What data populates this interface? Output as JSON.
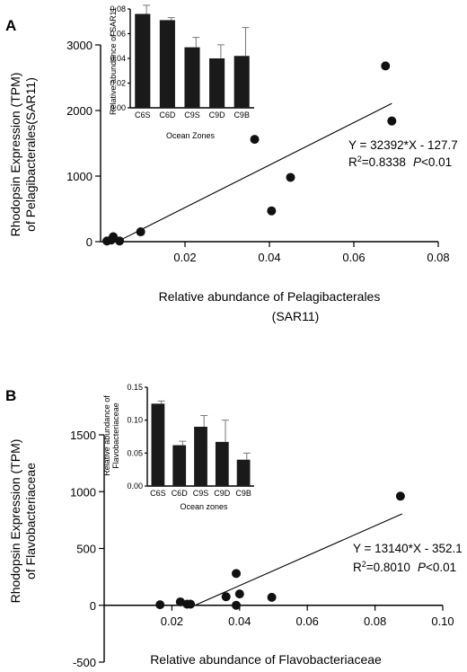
{
  "chart_data": [
    {
      "type": "scatter",
      "panel": "A",
      "ylabel_lines": [
        "Rhodopsin Expression (TPM)",
        "of Pelagibacterales(SAR11)"
      ],
      "xlabel_lines": [
        "Relative abundance of Pelagibacterales",
        "(SAR11)"
      ],
      "xlim": [
        0,
        0.08
      ],
      "ylim": [
        0,
        3000
      ],
      "xticks": [
        0.02,
        0.04,
        0.06,
        0.08
      ],
      "xtick_labels": [
        "0.02",
        "0.04",
        "0.06",
        "0.08"
      ],
      "yticks": [
        0,
        1000,
        2000,
        3000
      ],
      "ytick_labels": [
        "0",
        "1000",
        "2000",
        "3000"
      ],
      "points": [
        {
          "x": 0.0015,
          "y": 10
        },
        {
          "x": 0.0025,
          "y": 25
        },
        {
          "x": 0.003,
          "y": 75
        },
        {
          "x": 0.0045,
          "y": 10
        },
        {
          "x": 0.0095,
          "y": 150
        },
        {
          "x": 0.0365,
          "y": 1560
        },
        {
          "x": 0.0405,
          "y": 470
        },
        {
          "x": 0.045,
          "y": 980
        },
        {
          "x": 0.0675,
          "y": 2680
        },
        {
          "x": 0.069,
          "y": 1840
        }
      ],
      "fit": {
        "slope": 32392,
        "intercept": -127.7,
        "x_range": [
          0.0045,
          0.069
        ]
      },
      "equation": "Y = 32392*X - 127.7",
      "r2_prefix": "R",
      "r2_sup": "2",
      "r2_value": "=0.8338",
      "p_label": "P",
      "p_value": "<0.01",
      "inset": {
        "type": "bar",
        "categories": [
          "C6S",
          "C6D",
          "C9S",
          "C9D",
          "C9B"
        ],
        "values": [
          0.076,
          0.071,
          0.049,
          0.04,
          0.042
        ],
        "errors": [
          0.007,
          0.002,
          0.008,
          0.011,
          0.023
        ],
        "ylim": [
          0,
          0.08
        ],
        "yticks": [
          0,
          0.02,
          0.04,
          0.06,
          0.08
        ],
        "ytick_labels": [
          "0.00",
          "0.02",
          "0.04",
          "0.06",
          "0.08"
        ],
        "xlabel": "Ocean Zones",
        "ylabel": "Relative abundance of SAR11"
      }
    },
    {
      "type": "scatter",
      "panel": "B",
      "ylabel_lines": [
        "Rhodopsin Expression (TPM)",
        "of Flavobacteriaceae"
      ],
      "xlabel_lines": [
        "Relative abundance of Flavobacteriaceae"
      ],
      "xlim": [
        0,
        0.1
      ],
      "ylim": [
        -500,
        1500
      ],
      "xticks": [
        0.02,
        0.04,
        0.06,
        0.08,
        0.1
      ],
      "xtick_labels": [
        "0.02",
        "0.04",
        "0.06",
        "0.08",
        "0.10"
      ],
      "yticks": [
        -500,
        0,
        500,
        1000,
        1500
      ],
      "ytick_labels": [
        "-500",
        "0",
        "500",
        "1000",
        "1500"
      ],
      "points": [
        {
          "x": 0.0165,
          "y": 5
        },
        {
          "x": 0.0225,
          "y": 30
        },
        {
          "x": 0.0245,
          "y": 10
        },
        {
          "x": 0.0255,
          "y": 10
        },
        {
          "x": 0.036,
          "y": 75
        },
        {
          "x": 0.039,
          "y": 280
        },
        {
          "x": 0.039,
          "y": 0
        },
        {
          "x": 0.04,
          "y": 100
        },
        {
          "x": 0.0495,
          "y": 70
        },
        {
          "x": 0.0875,
          "y": 960
        }
      ],
      "fit": {
        "slope": 13140,
        "intercept": -352.1,
        "x_range": [
          0.0268,
          0.088
        ]
      },
      "equation": "Y = 13140*X - 352.1",
      "r2_prefix": "R",
      "r2_sup": "2",
      "r2_value": "=0.8010",
      "p_label": "P",
      "p_value": "<0.01",
      "inset": {
        "type": "bar",
        "categories": [
          "C6S",
          "C6D",
          "C9S",
          "C9D",
          "C9B"
        ],
        "values": [
          0.125,
          0.062,
          0.09,
          0.067,
          0.04
        ],
        "errors": [
          0.004,
          0.006,
          0.017,
          0.033,
          0.01
        ],
        "ylim": [
          0,
          0.15
        ],
        "yticks": [
          0,
          0.05,
          0.1,
          0.15
        ],
        "ytick_labels": [
          "0.00",
          "0.05",
          "0.10",
          "0.15"
        ],
        "xlabel": "Ocean zones",
        "ylabel_lines": [
          "Relative abundance of",
          "Flavobacteriaceae"
        ]
      }
    }
  ]
}
